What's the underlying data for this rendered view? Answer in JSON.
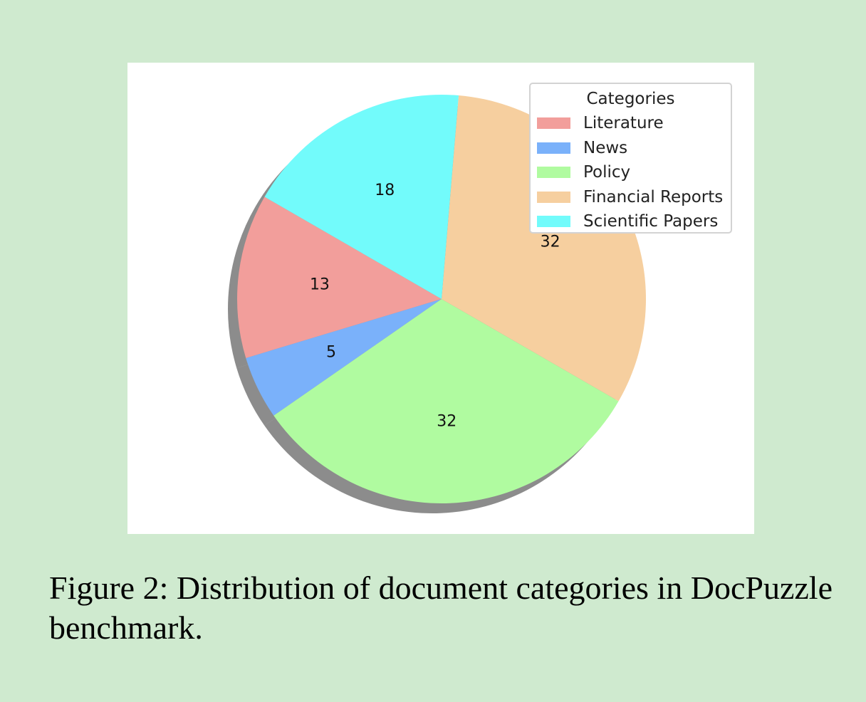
{
  "caption": "Figure 2:  Distribution of document categories in DocPuzzle benchmark.",
  "chart_data": {
    "type": "pie",
    "legend_title": "Categories",
    "legend_position": "upper right",
    "shadow": true,
    "start_angle_deg": 150,
    "direction": "counterclockwise",
    "slices": [
      {
        "label": "Literature",
        "value": 13,
        "color": "#f29e9b"
      },
      {
        "label": "News",
        "value": 5,
        "color": "#7ab1fa"
      },
      {
        "label": "Policy",
        "value": 32,
        "color": "#b0fba0"
      },
      {
        "label": "Financial Reports",
        "value": 32,
        "color": "#f6cf9f"
      },
      {
        "label": "Scientific Papers",
        "value": 18,
        "color": "#72fbfb"
      }
    ]
  }
}
